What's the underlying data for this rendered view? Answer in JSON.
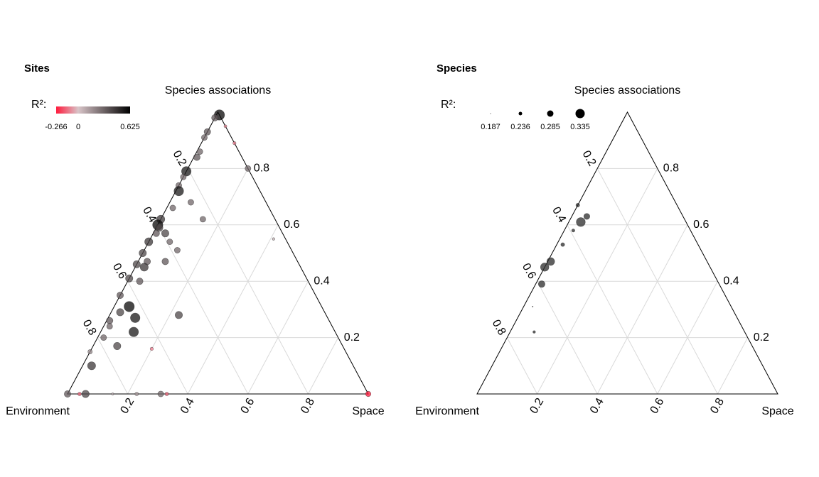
{
  "chart_data": [
    {
      "type": "ternary",
      "title": "Sites",
      "vertices": {
        "left": "Environment",
        "right": "Space",
        "top": "Species associations"
      },
      "ticks": [
        0.2,
        0.4,
        0.6,
        0.8
      ],
      "grid": true,
      "points": {
        "environment": [
          0,
          0.02,
          0,
          0.07,
          0.09,
          0,
          0.13,
          0.15,
          0.21,
          0,
          0.23,
          0.26,
          0.27,
          0.25,
          0.32,
          0.24,
          0.38,
          0.4,
          0.39,
          0.42,
          0.39,
          0.46,
          0.38,
          0.5,
          0.04,
          0.44,
          0.5,
          0.54,
          0.56,
          0.59,
          0.65,
          0.64,
          0.68,
          0.64,
          0.49,
          0.73,
          0.74,
          0.78,
          0.67,
          0.75,
          0.85,
          0.64,
          0.87,
          1,
          0.96,
          0.94,
          0.85,
          0.77,
          0.69,
          0.67,
          0,
          0.52,
          0.4
        ],
        "space": [
          0.01,
          0,
          0.05,
          0,
          0,
          0.11,
          0.01,
          0.01,
          0,
          0.2,
          0,
          0,
          0.01,
          0.07,
          0.02,
          0.14,
          0,
          0,
          0.04,
          0.01,
          0.07,
          0,
          0.11,
          0,
          0.41,
          0.09,
          0.03,
          0,
          0.04,
          0,
          0,
          0.05,
          0.03,
          0.09,
          0.23,
          0.01,
          0.02,
          0.02,
          0.11,
          0.08,
          0,
          0.2,
          0.03,
          0,
          0.04,
          0.06,
          0.15,
          0.23,
          0.31,
          0.33,
          1,
          0.03,
          0.01
        ],
        "species_associations": [
          0.99,
          0.98,
          0.95,
          0.93,
          0.91,
          0.89,
          0.86,
          0.84,
          0.79,
          0.8,
          0.77,
          0.74,
          0.72,
          0.68,
          0.66,
          0.62,
          0.62,
          0.6,
          0.57,
          0.57,
          0.54,
          0.54,
          0.51,
          0.5,
          0.55,
          0.47,
          0.47,
          0.46,
          0.4,
          0.41,
          0.35,
          0.31,
          0.29,
          0.27,
          0.28,
          0.26,
          0.24,
          0.2,
          0.22,
          0.17,
          0.15,
          0.16,
          0.1,
          0,
          0,
          0,
          0,
          0,
          0,
          0,
          0,
          0.45,
          0.59
        ],
        "r2": [
          0.6,
          0.35,
          -0.1,
          0.35,
          0.3,
          -0.12,
          0.3,
          0.35,
          0.55,
          0.3,
          0.3,
          0.3,
          0.55,
          0.3,
          0.3,
          0.3,
          0.45,
          0.6,
          0.4,
          0.35,
          0.3,
          0.45,
          0.3,
          0.4,
          0.08,
          0.35,
          0.35,
          0.4,
          0.35,
          0.4,
          0.35,
          0.6,
          0.4,
          0.55,
          0.4,
          0.35,
          0.3,
          0.3,
          0.55,
          0.4,
          0.2,
          -0.12,
          0.45,
          0.35,
          -0.15,
          0.4,
          0.05,
          0.15,
          0.3,
          -0.15,
          -0.266,
          0.45,
          0.4
        ]
      },
      "legend": {
        "title": "R²:",
        "kind": "color",
        "breaks": [
          -0.266,
          0,
          0.625
        ],
        "colors": [
          "#ff1a3c",
          "#d8c4c8",
          "#000000"
        ]
      }
    },
    {
      "type": "ternary",
      "title": "Species",
      "vertices": {
        "left": "Environment",
        "right": "Space",
        "top": "Species associations"
      },
      "ticks": [
        0.2,
        0.4,
        0.6,
        0.8
      ],
      "grid": true,
      "color": "#2b2b2b",
      "points": {
        "environment": [
          0.33,
          0.32,
          0.35,
          0.39,
          0.45,
          0.52,
          0.55,
          0.59,
          0.66,
          0.7
        ],
        "space": [
          0,
          0.05,
          0.04,
          0.03,
          0.02,
          0.01,
          0,
          0.02,
          0.03,
          0.08
        ],
        "species_associations": [
          0.67,
          0.63,
          0.61,
          0.58,
          0.53,
          0.47,
          0.45,
          0.39,
          0.31,
          0.22
        ],
        "r2": [
          0.24,
          0.28,
          0.33,
          0.23,
          0.24,
          0.31,
          0.32,
          0.29,
          0.19,
          0.22
        ]
      },
      "legend": {
        "title": "R²:",
        "kind": "size",
        "breaks": [
          0.187,
          0.236,
          0.285,
          0.335
        ]
      }
    }
  ]
}
